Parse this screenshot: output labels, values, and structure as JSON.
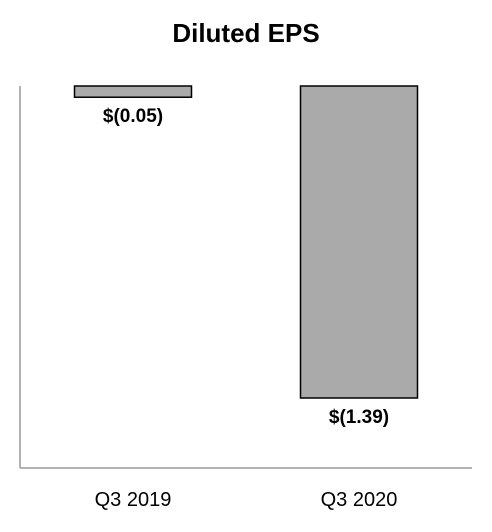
{
  "chart_data": {
    "type": "bar",
    "title": "Diluted EPS",
    "xlabel": "",
    "ylabel": "",
    "categories": [
      "Q3 2019",
      "Q3 2020"
    ],
    "values": [
      -0.05,
      -1.39
    ],
    "value_labels": [
      "$(0.05)",
      "$(1.39)"
    ],
    "ylim": [
      -1.39,
      0
    ],
    "grid": false,
    "legend": "none",
    "bar_color": "#aaaaaa",
    "bar_outline_color": "#000000",
    "axis_color": "#9a9a9a"
  }
}
